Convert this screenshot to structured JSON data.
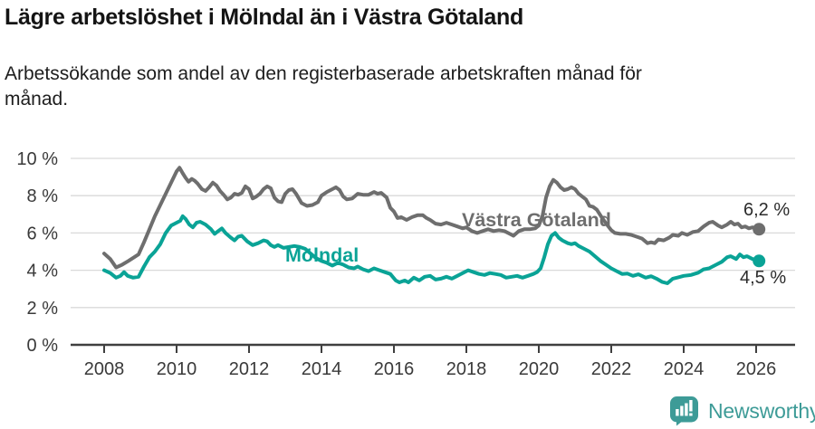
{
  "header": {
    "title": "Lägre arbetslöshet i Mölndal än i Västra Götaland",
    "subtitle": "Arbetssökande som andel av den registerbaserade arbetskraften månad för månad.",
    "subtitle_lines": [
      "Arbetssökande som andel av den registerbaserade arbetskraften månad för",
      "månad."
    ]
  },
  "chart_data": {
    "type": "line",
    "title": "Lägre arbetslöshet i Mölndal än i Västra Götaland",
    "subtitle": "Arbetssökande som andel av den registerbaserade arbetskraften månad för månad.",
    "unit": "%",
    "x_axis": {
      "tick_years": [
        2008,
        2010,
        2012,
        2014,
        2016,
        2018,
        2020,
        2022,
        2024,
        2026
      ],
      "range": [
        2007.1,
        2027.1
      ],
      "grid": false
    },
    "y_axis": {
      "tick_labels": [
        "0 %",
        "2 %",
        "4 %",
        "6 %",
        "8 %",
        "10 %"
      ],
      "tick_values": [
        0,
        2,
        4,
        6,
        8,
        10
      ],
      "range": [
        0,
        10.5
      ],
      "grid": true,
      "gridline_color": "#d9d9d9"
    },
    "legend_position": "inline-labels",
    "series": [
      {
        "name": "Västra Götaland",
        "color": "#6e6e6e",
        "end_label": "6,2 %",
        "end_value": 6.2,
        "points": [
          [
            2008.0,
            4.9
          ],
          [
            2008.17,
            4.6
          ],
          [
            2008.33,
            4.15
          ],
          [
            2008.5,
            4.3
          ],
          [
            2008.67,
            4.5
          ],
          [
            2008.83,
            4.7
          ],
          [
            2008.95,
            4.85
          ],
          [
            2009.1,
            5.5
          ],
          [
            2009.25,
            6.2
          ],
          [
            2009.4,
            6.9
          ],
          [
            2009.55,
            7.5
          ],
          [
            2009.7,
            8.1
          ],
          [
            2009.85,
            8.7
          ],
          [
            2010.0,
            9.3
          ],
          [
            2010.08,
            9.5
          ],
          [
            2010.17,
            9.2
          ],
          [
            2010.25,
            8.95
          ],
          [
            2010.33,
            8.75
          ],
          [
            2010.42,
            8.9
          ],
          [
            2010.5,
            8.8
          ],
          [
            2010.58,
            8.65
          ],
          [
            2010.7,
            8.35
          ],
          [
            2010.8,
            8.25
          ],
          [
            2010.9,
            8.45
          ],
          [
            2011.0,
            8.7
          ],
          [
            2011.1,
            8.55
          ],
          [
            2011.2,
            8.25
          ],
          [
            2011.3,
            8.05
          ],
          [
            2011.4,
            7.8
          ],
          [
            2011.5,
            7.9
          ],
          [
            2011.6,
            8.1
          ],
          [
            2011.7,
            8.05
          ],
          [
            2011.8,
            8.15
          ],
          [
            2011.9,
            8.5
          ],
          [
            2012.0,
            8.35
          ],
          [
            2012.1,
            7.85
          ],
          [
            2012.2,
            7.95
          ],
          [
            2012.3,
            8.1
          ],
          [
            2012.4,
            8.35
          ],
          [
            2012.5,
            8.5
          ],
          [
            2012.6,
            8.4
          ],
          [
            2012.7,
            7.9
          ],
          [
            2012.8,
            7.7
          ],
          [
            2012.9,
            7.65
          ],
          [
            2013.0,
            8.1
          ],
          [
            2013.1,
            8.3
          ],
          [
            2013.2,
            8.35
          ],
          [
            2013.3,
            8.1
          ],
          [
            2013.45,
            7.6
          ],
          [
            2013.6,
            7.45
          ],
          [
            2013.75,
            7.5
          ],
          [
            2013.9,
            7.65
          ],
          [
            2014.0,
            8.0
          ],
          [
            2014.15,
            8.2
          ],
          [
            2014.3,
            8.35
          ],
          [
            2014.4,
            8.45
          ],
          [
            2014.5,
            8.3
          ],
          [
            2014.6,
            7.95
          ],
          [
            2014.7,
            7.8
          ],
          [
            2014.85,
            7.85
          ],
          [
            2015.0,
            8.1
          ],
          [
            2015.15,
            8.05
          ],
          [
            2015.3,
            8.05
          ],
          [
            2015.45,
            8.2
          ],
          [
            2015.55,
            8.1
          ],
          [
            2015.65,
            8.15
          ],
          [
            2015.8,
            7.9
          ],
          [
            2015.9,
            7.35
          ],
          [
            2016.0,
            7.15
          ],
          [
            2016.1,
            6.8
          ],
          [
            2016.2,
            6.85
          ],
          [
            2016.35,
            6.7
          ],
          [
            2016.5,
            6.85
          ],
          [
            2016.65,
            6.95
          ],
          [
            2016.8,
            6.95
          ],
          [
            2016.9,
            6.8
          ],
          [
            2017.0,
            6.7
          ],
          [
            2017.15,
            6.5
          ],
          [
            2017.3,
            6.45
          ],
          [
            2017.45,
            6.55
          ],
          [
            2017.6,
            6.45
          ],
          [
            2017.75,
            6.35
          ],
          [
            2017.9,
            6.25
          ],
          [
            2018.0,
            6.3
          ],
          [
            2018.15,
            6.1
          ],
          [
            2018.3,
            6.0
          ],
          [
            2018.45,
            6.1
          ],
          [
            2018.6,
            6.2
          ],
          [
            2018.75,
            6.1
          ],
          [
            2018.9,
            6.15
          ],
          [
            2019.05,
            6.1
          ],
          [
            2019.2,
            5.95
          ],
          [
            2019.3,
            5.85
          ],
          [
            2019.45,
            6.1
          ],
          [
            2019.6,
            6.2
          ],
          [
            2019.75,
            6.2
          ],
          [
            2019.9,
            6.25
          ],
          [
            2020.0,
            6.4
          ],
          [
            2020.1,
            6.9
          ],
          [
            2020.2,
            7.9
          ],
          [
            2020.3,
            8.5
          ],
          [
            2020.4,
            8.85
          ],
          [
            2020.5,
            8.7
          ],
          [
            2020.6,
            8.45
          ],
          [
            2020.7,
            8.3
          ],
          [
            2020.8,
            8.35
          ],
          [
            2020.9,
            8.45
          ],
          [
            2021.0,
            8.35
          ],
          [
            2021.1,
            8.1
          ],
          [
            2021.2,
            7.95
          ],
          [
            2021.3,
            7.8
          ],
          [
            2021.4,
            7.45
          ],
          [
            2021.5,
            7.4
          ],
          [
            2021.6,
            7.25
          ],
          [
            2021.75,
            6.8
          ],
          [
            2021.9,
            6.4
          ],
          [
            2022.0,
            6.15
          ],
          [
            2022.1,
            6.0
          ],
          [
            2022.25,
            5.95
          ],
          [
            2022.4,
            5.95
          ],
          [
            2022.55,
            5.9
          ],
          [
            2022.7,
            5.8
          ],
          [
            2022.85,
            5.7
          ],
          [
            2023.0,
            5.45
          ],
          [
            2023.1,
            5.5
          ],
          [
            2023.2,
            5.45
          ],
          [
            2023.3,
            5.65
          ],
          [
            2023.45,
            5.6
          ],
          [
            2023.6,
            5.75
          ],
          [
            2023.7,
            5.9
          ],
          [
            2023.85,
            5.85
          ],
          [
            2023.95,
            6.0
          ],
          [
            2024.1,
            5.9
          ],
          [
            2024.25,
            6.05
          ],
          [
            2024.4,
            6.1
          ],
          [
            2024.55,
            6.35
          ],
          [
            2024.7,
            6.55
          ],
          [
            2024.8,
            6.6
          ],
          [
            2024.95,
            6.4
          ],
          [
            2025.05,
            6.3
          ],
          [
            2025.2,
            6.45
          ],
          [
            2025.3,
            6.6
          ],
          [
            2025.4,
            6.45
          ],
          [
            2025.5,
            6.5
          ],
          [
            2025.6,
            6.3
          ],
          [
            2025.7,
            6.35
          ],
          [
            2025.8,
            6.25
          ],
          [
            2025.9,
            6.3
          ],
          [
            2026.0,
            6.25
          ],
          [
            2026.08,
            6.2
          ]
        ]
      },
      {
        "name": "Mölndal",
        "color": "#0aa396",
        "end_label": "4,5 %",
        "end_value": 4.5,
        "points": [
          [
            2008.0,
            4.0
          ],
          [
            2008.17,
            3.85
          ],
          [
            2008.33,
            3.6
          ],
          [
            2008.45,
            3.7
          ],
          [
            2008.55,
            3.9
          ],
          [
            2008.65,
            3.7
          ],
          [
            2008.8,
            3.6
          ],
          [
            2008.95,
            3.65
          ],
          [
            2009.1,
            4.2
          ],
          [
            2009.25,
            4.7
          ],
          [
            2009.4,
            5.0
          ],
          [
            2009.55,
            5.4
          ],
          [
            2009.7,
            6.0
          ],
          [
            2009.85,
            6.4
          ],
          [
            2009.95,
            6.5
          ],
          [
            2010.1,
            6.65
          ],
          [
            2010.17,
            6.9
          ],
          [
            2010.25,
            6.75
          ],
          [
            2010.35,
            6.45
          ],
          [
            2010.45,
            6.3
          ],
          [
            2010.55,
            6.55
          ],
          [
            2010.65,
            6.6
          ],
          [
            2010.8,
            6.45
          ],
          [
            2010.95,
            6.2
          ],
          [
            2011.05,
            5.95
          ],
          [
            2011.15,
            6.1
          ],
          [
            2011.25,
            6.25
          ],
          [
            2011.35,
            6.0
          ],
          [
            2011.5,
            5.75
          ],
          [
            2011.6,
            5.6
          ],
          [
            2011.7,
            5.8
          ],
          [
            2011.8,
            5.85
          ],
          [
            2011.95,
            5.55
          ],
          [
            2012.1,
            5.35
          ],
          [
            2012.25,
            5.45
          ],
          [
            2012.4,
            5.6
          ],
          [
            2012.5,
            5.55
          ],
          [
            2012.6,
            5.35
          ],
          [
            2012.7,
            5.25
          ],
          [
            2012.8,
            5.35
          ],
          [
            2012.95,
            5.2
          ],
          [
            2013.1,
            5.25
          ],
          [
            2013.25,
            5.3
          ],
          [
            2013.4,
            5.25
          ],
          [
            2013.55,
            5.15
          ],
          [
            2013.7,
            4.9
          ],
          [
            2013.85,
            4.65
          ],
          [
            2014.0,
            4.5
          ],
          [
            2014.15,
            4.4
          ],
          [
            2014.3,
            4.25
          ],
          [
            2014.45,
            4.4
          ],
          [
            2014.6,
            4.3
          ],
          [
            2014.75,
            4.15
          ],
          [
            2014.9,
            4.1
          ],
          [
            2015.0,
            4.2
          ],
          [
            2015.15,
            4.05
          ],
          [
            2015.3,
            3.95
          ],
          [
            2015.45,
            4.1
          ],
          [
            2015.6,
            4.0
          ],
          [
            2015.75,
            3.9
          ],
          [
            2015.9,
            3.8
          ],
          [
            2016.05,
            3.45
          ],
          [
            2016.15,
            3.35
          ],
          [
            2016.3,
            3.45
          ],
          [
            2016.4,
            3.35
          ],
          [
            2016.55,
            3.6
          ],
          [
            2016.7,
            3.45
          ],
          [
            2016.85,
            3.65
          ],
          [
            2017.0,
            3.7
          ],
          [
            2017.15,
            3.5
          ],
          [
            2017.3,
            3.55
          ],
          [
            2017.45,
            3.65
          ],
          [
            2017.6,
            3.55
          ],
          [
            2017.75,
            3.7
          ],
          [
            2017.9,
            3.85
          ],
          [
            2018.05,
            4.0
          ],
          [
            2018.2,
            3.9
          ],
          [
            2018.35,
            3.8
          ],
          [
            2018.5,
            3.75
          ],
          [
            2018.65,
            3.85
          ],
          [
            2018.8,
            3.8
          ],
          [
            2018.95,
            3.75
          ],
          [
            2019.1,
            3.6
          ],
          [
            2019.25,
            3.65
          ],
          [
            2019.4,
            3.7
          ],
          [
            2019.55,
            3.6
          ],
          [
            2019.7,
            3.7
          ],
          [
            2019.85,
            3.8
          ],
          [
            2019.95,
            3.9
          ],
          [
            2020.05,
            4.1
          ],
          [
            2020.15,
            4.7
          ],
          [
            2020.25,
            5.4
          ],
          [
            2020.35,
            5.85
          ],
          [
            2020.45,
            6.0
          ],
          [
            2020.55,
            5.75
          ],
          [
            2020.65,
            5.6
          ],
          [
            2020.8,
            5.45
          ],
          [
            2020.9,
            5.4
          ],
          [
            2021.0,
            5.45
          ],
          [
            2021.1,
            5.3
          ],
          [
            2021.25,
            5.15
          ],
          [
            2021.4,
            5.0
          ],
          [
            2021.55,
            4.75
          ],
          [
            2021.7,
            4.5
          ],
          [
            2021.85,
            4.3
          ],
          [
            2022.0,
            4.1
          ],
          [
            2022.15,
            3.95
          ],
          [
            2022.3,
            3.8
          ],
          [
            2022.45,
            3.82
          ],
          [
            2022.6,
            3.7
          ],
          [
            2022.75,
            3.78
          ],
          [
            2022.95,
            3.6
          ],
          [
            2023.1,
            3.68
          ],
          [
            2023.25,
            3.55
          ],
          [
            2023.4,
            3.38
          ],
          [
            2023.55,
            3.3
          ],
          [
            2023.7,
            3.55
          ],
          [
            2023.85,
            3.62
          ],
          [
            2024.0,
            3.7
          ],
          [
            2024.2,
            3.75
          ],
          [
            2024.4,
            3.87
          ],
          [
            2024.55,
            4.05
          ],
          [
            2024.7,
            4.1
          ],
          [
            2024.9,
            4.3
          ],
          [
            2025.05,
            4.45
          ],
          [
            2025.2,
            4.7
          ],
          [
            2025.3,
            4.75
          ],
          [
            2025.45,
            4.6
          ],
          [
            2025.55,
            4.85
          ],
          [
            2025.65,
            4.7
          ],
          [
            2025.75,
            4.75
          ],
          [
            2025.9,
            4.6
          ],
          [
            2026.08,
            4.5
          ]
        ]
      }
    ]
  },
  "footer": {
    "brand": "Newsworthy",
    "logo_icon": "bar-chart-speech-bubble-icon",
    "brand_color": "#3d9b97"
  }
}
